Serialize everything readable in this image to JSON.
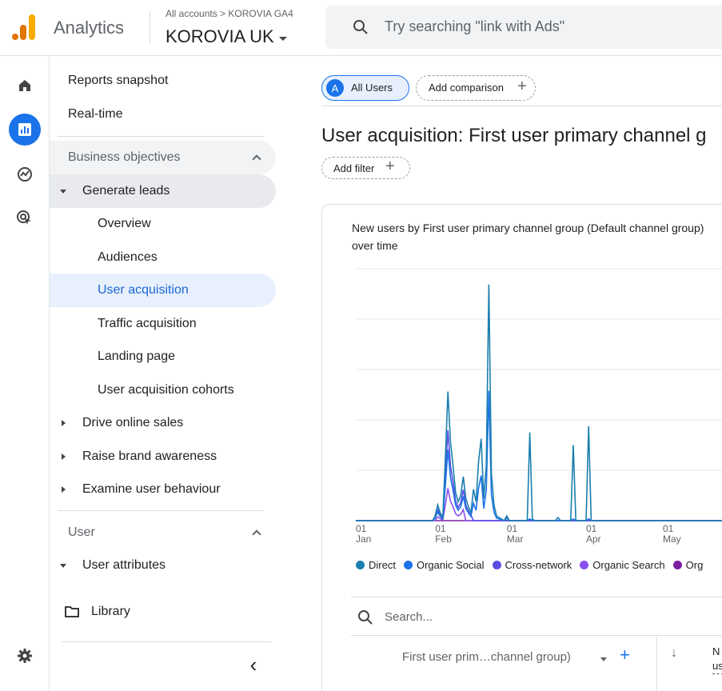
{
  "header": {
    "app_name": "Analytics",
    "breadcrumb": "All accounts > KOROVIA GA4",
    "account": "KOROVIA UK",
    "search_placeholder": "Try searching \"link with Ads\""
  },
  "rail": {
    "items": [
      {
        "name": "home-icon"
      },
      {
        "name": "reports-icon",
        "active": true
      },
      {
        "name": "explore-icon"
      },
      {
        "name": "advertising-icon"
      }
    ],
    "settings": "gear-icon"
  },
  "nav": {
    "reports_snapshot": "Reports snapshot",
    "realtime": "Real-time",
    "business_objectives": "Business objectives",
    "generate_leads": "Generate leads",
    "overview": "Overview",
    "audiences": "Audiences",
    "user_acquisition": "User acquisition",
    "traffic_acquisition": "Traffic acquisition",
    "landing_page": "Landing page",
    "user_acquisition_cohorts": "User acquisition cohorts",
    "drive_online_sales": "Drive online sales",
    "raise_brand_awareness": "Raise brand awareness",
    "examine_user_behaviour": "Examine user behaviour",
    "user_section": "User",
    "user_attributes": "User attributes",
    "library": "Library",
    "collapse_glyph": "‹"
  },
  "main": {
    "segment_badge": "A",
    "segment": "All Users",
    "add_comparison": "Add comparison",
    "title": "User acquisition: First user primary channel g",
    "add_filter": "Add filter",
    "card_title": "New users by First user primary channel group (Default channel group) over time",
    "table_search": "Search...",
    "column_header": "First user prim…channel group)",
    "sort_arrow": "↓",
    "col_n_line1": "N",
    "col_n_line2": "us"
  },
  "chart_data": {
    "type": "line",
    "x_ticks": [
      {
        "day": "01",
        "month": "Jan"
      },
      {
        "day": "01",
        "month": "Feb"
      },
      {
        "day": "01",
        "month": "Mar"
      },
      {
        "day": "01",
        "month": "Apr"
      },
      {
        "day": "01",
        "month": "May"
      }
    ],
    "series": [
      {
        "name": "Direct",
        "color": "#1a7fad",
        "values": [
          0,
          0,
          0,
          0,
          0,
          0,
          0,
          0,
          0,
          0,
          0,
          0,
          0,
          0,
          0,
          0,
          0,
          0,
          0,
          0,
          0,
          0,
          0,
          0,
          0,
          0,
          0,
          0,
          0,
          0,
          0,
          3,
          10,
          5,
          2,
          40,
          82,
          50,
          35,
          18,
          12,
          16,
          28,
          14,
          9,
          5,
          20,
          12,
          38,
          52,
          14,
          35,
          150,
          30,
          10,
          3,
          2,
          1,
          0,
          3,
          0,
          0,
          0,
          0,
          0,
          0,
          0,
          0,
          56,
          1,
          0,
          0,
          0,
          0,
          0,
          0,
          0,
          0,
          0,
          2,
          0,
          0,
          0,
          0,
          0,
          48,
          0,
          0,
          0,
          0,
          0,
          60,
          0,
          0,
          0,
          0,
          0,
          0,
          0,
          0,
          0,
          0,
          0,
          0,
          0,
          0,
          0,
          0,
          0,
          0,
          0,
          0,
          0,
          0,
          0,
          0,
          0,
          0,
          0,
          0,
          0,
          0,
          0,
          0,
          0,
          0,
          0,
          0,
          0,
          0,
          0,
          0,
          0,
          0,
          0,
          0,
          0,
          0,
          0,
          0,
          0,
          0,
          0,
          0,
          0,
          0,
          0,
          0,
          0,
          0,
          0,
          0,
          0,
          0,
          0,
          0,
          0,
          0,
          0,
          0,
          0,
          0,
          0,
          0,
          0,
          0,
          0,
          0,
          0,
          0,
          0,
          0,
          0,
          0,
          0,
          0,
          0,
          0,
          0,
          0,
          0,
          0,
          0,
          0,
          0,
          0,
          0,
          0,
          0,
          0
        ]
      },
      {
        "name": "Organic Social",
        "color": "#1a73e8",
        "values": []
      },
      {
        "name": "Cross-network",
        "color": "#5c4ee5",
        "values": []
      },
      {
        "name": "Organic Search",
        "color": "#8a4ff0",
        "values": []
      },
      {
        "name": "Org",
        "color": "#7b1fa2",
        "values": []
      }
    ]
  }
}
